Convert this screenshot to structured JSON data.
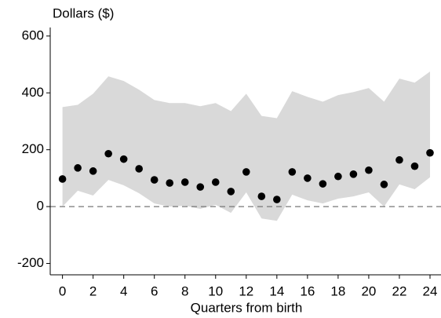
{
  "chart_data": {
    "type": "scatter",
    "ylabel": "Dollars ($)",
    "xlabel": "Quarters from birth",
    "x": [
      0,
      1,
      2,
      3,
      4,
      5,
      6,
      7,
      8,
      9,
      10,
      11,
      12,
      13,
      14,
      15,
      16,
      17,
      18,
      19,
      20,
      21,
      22,
      23,
      24
    ],
    "values": [
      97,
      136,
      125,
      186,
      167,
      133,
      94,
      83,
      86,
      69,
      86,
      53,
      122,
      36,
      25,
      122,
      100,
      80,
      106,
      114,
      128,
      78,
      164,
      142,
      189
    ],
    "band_upper": [
      350,
      358,
      397,
      458,
      442,
      411,
      375,
      364,
      364,
      353,
      364,
      336,
      397,
      319,
      311,
      406,
      386,
      369,
      392,
      403,
      417,
      369,
      450,
      436,
      475
    ],
    "band_lower": [
      0,
      56,
      39,
      94,
      75,
      47,
      11,
      0,
      3,
      -8,
      6,
      -22,
      50,
      -42,
      -50,
      42,
      22,
      11,
      28,
      36,
      50,
      0,
      78,
      61,
      103
    ],
    "color": "#000000",
    "band_color": "#d9d9d9",
    "reference_line": 0,
    "xlim": [
      -0.8,
      24.8
    ],
    "ylim": [
      -240,
      630
    ],
    "xticks": [
      0,
      2,
      4,
      6,
      8,
      10,
      12,
      14,
      16,
      18,
      20,
      22,
      24
    ],
    "yticks": [
      -200,
      0,
      200,
      400,
      600
    ]
  }
}
